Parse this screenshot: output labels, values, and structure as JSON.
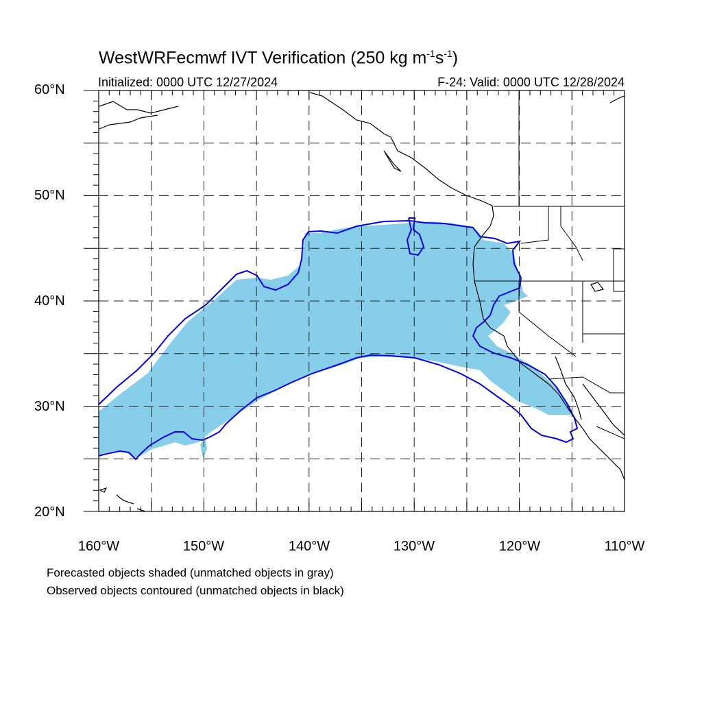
{
  "chart": {
    "title_main": "WestWRFecmwf IVT Verification (250 kg m",
    "title_sup1": "-1",
    "title_mid": "s",
    "title_sup2": "-1",
    "title_end": ")",
    "initialized": "Initialized: 0000 UTC 12/27/2024",
    "valid": "F-24: Valid: 0000 UTC 12/28/2024"
  },
  "axes": {
    "lat_labels": [
      "60°N",
      "50°N",
      "40°N",
      "30°N",
      "20°N"
    ],
    "lon_labels": [
      "160°W",
      "150°W",
      "140°W",
      "130°W",
      "120°W",
      "110°W"
    ],
    "lon_range": [
      -160,
      -110
    ],
    "lat_range": [
      20,
      60
    ],
    "grid": "dashed every 5°"
  },
  "legend": {
    "line1": "Forecasted objects shaded (unmatched objects in gray)",
    "line2": "Observed objects contoured (unmatched objects in black)"
  },
  "colors": {
    "forecast_fill": "#87ceeb",
    "observed_contour": "#0000ee",
    "coastline": "#000000",
    "grid": "#000000"
  }
}
